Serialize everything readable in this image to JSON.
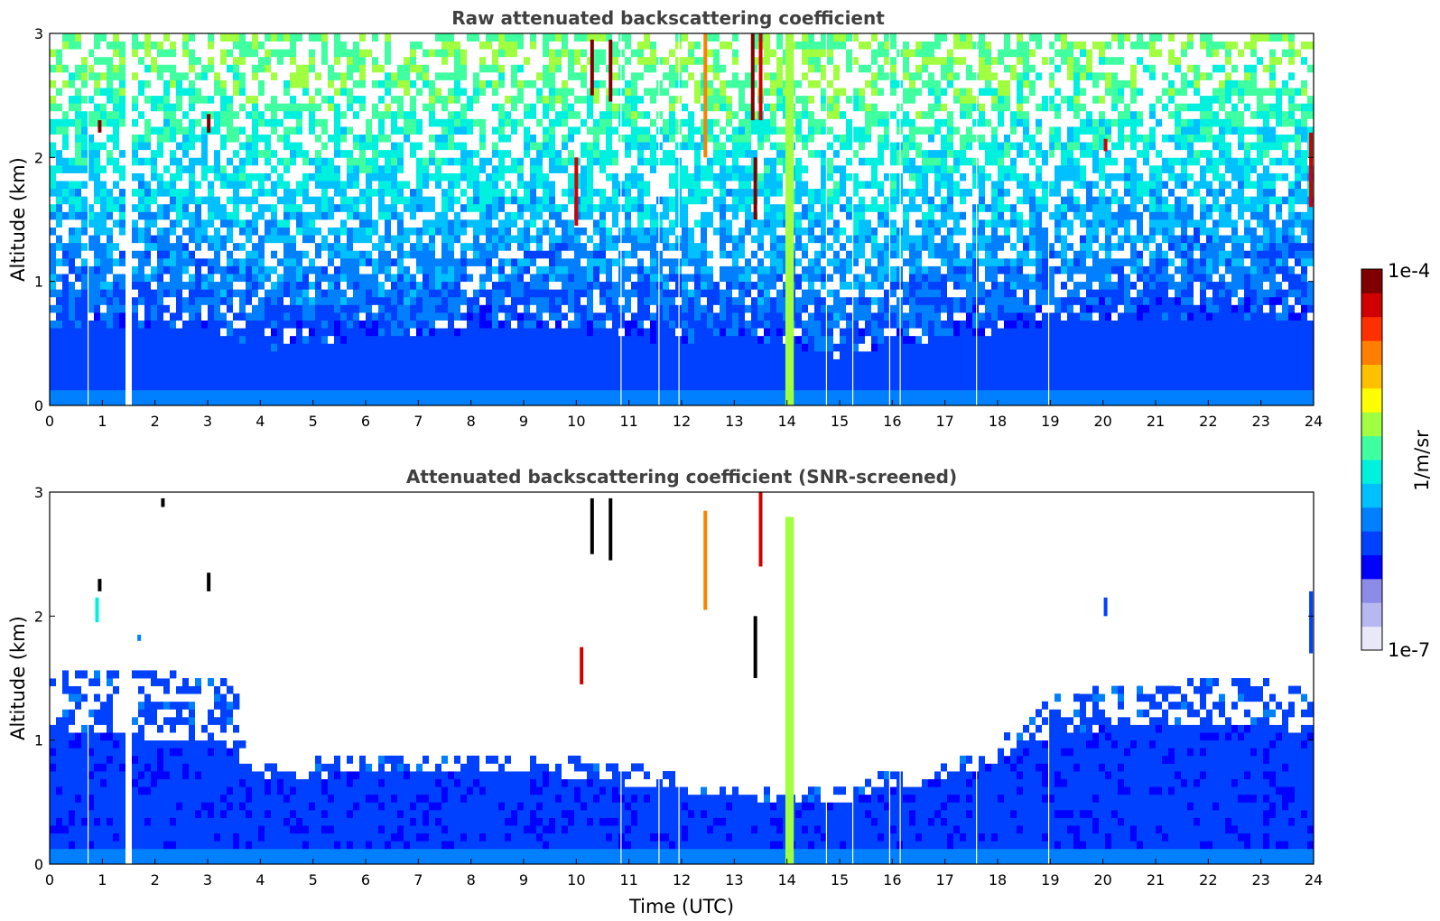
{
  "chart_data": [
    {
      "type": "heatmap",
      "title": "Raw attenuated backscattering coefficient",
      "xlabel": "",
      "ylabel": "Altitude (km)",
      "xlim": [
        0,
        24
      ],
      "ylim": [
        0,
        3
      ],
      "xticks": [
        "0",
        "1",
        "2",
        "3",
        "4",
        "5",
        "6",
        "7",
        "8",
        "9",
        "10",
        "11",
        "12",
        "13",
        "14",
        "15",
        "16",
        "17",
        "18",
        "19",
        "20",
        "21",
        "22",
        "23",
        "24"
      ],
      "yticks": [
        "0",
        "1",
        "2",
        "3"
      ],
      "grid": false,
      "profile": {
        "time_utc": [
          0,
          1,
          2,
          3,
          4,
          5,
          6,
          7,
          8,
          9,
          10,
          11,
          12,
          13,
          14,
          15,
          16,
          17,
          18,
          19,
          20,
          21,
          22,
          23,
          24
        ],
        "noise_onset_km": [
          0.6,
          0.6,
          0.65,
          0.6,
          0.45,
          0.5,
          0.55,
          0.55,
          0.6,
          0.6,
          0.6,
          0.55,
          0.5,
          0.55,
          0.5,
          0.4,
          0.5,
          0.55,
          0.6,
          0.65,
          0.7,
          0.7,
          0.7,
          0.7,
          0.7
        ]
      },
      "gaps_utc": [
        0.73,
        1.5,
        10.85,
        11.57,
        11.95,
        14.75,
        15.25,
        15.95,
        16.15,
        17.6,
        18.97
      ],
      "features": [
        {
          "type": "cloud",
          "x": 0.95,
          "y0": 2.2,
          "y1": 2.3,
          "level": 1.0
        },
        {
          "type": "cloud",
          "x": 3.02,
          "y0": 2.2,
          "y1": 2.35,
          "level": 1.0
        },
        {
          "type": "cloud",
          "x": 10.3,
          "y0": 2.5,
          "y1": 2.95,
          "level": 0.95
        },
        {
          "type": "cloud",
          "x": 10.65,
          "y0": 2.45,
          "y1": 2.95,
          "level": 0.95
        },
        {
          "type": "cloud",
          "x": 10.0,
          "y0": 1.45,
          "y1": 2.0,
          "level": 0.9
        },
        {
          "type": "cloud",
          "x": 12.45,
          "y0": 2.0,
          "y1": 3.0,
          "level": 0.8
        },
        {
          "type": "cloud",
          "x": 13.35,
          "y0": 2.3,
          "y1": 3.0,
          "level": 0.95
        },
        {
          "type": "cloud",
          "x": 13.4,
          "y0": 1.5,
          "y1": 2.0,
          "level": 0.95
        },
        {
          "type": "cloud",
          "x": 13.5,
          "y0": 2.3,
          "y1": 3.0,
          "level": 0.9
        },
        {
          "type": "cloud",
          "x": 20.05,
          "y0": 2.05,
          "y1": 2.15,
          "level": 0.9
        },
        {
          "type": "cloud",
          "x": 23.95,
          "y0": 1.6,
          "y1": 2.2,
          "level": 0.9
        },
        {
          "type": "column",
          "x": 14.05,
          "width": 0.16,
          "y0": 0,
          "y1": 3.0,
          "level": 0.6
        }
      ]
    },
    {
      "type": "heatmap",
      "title": "Attenuated backscattering coefficient (SNR-screened)",
      "xlabel": "Time (UTC)",
      "ylabel": "Altitude (km)",
      "xlim": [
        0,
        24
      ],
      "ylim": [
        0,
        3
      ],
      "xticks": [
        "0",
        "1",
        "2",
        "3",
        "4",
        "5",
        "6",
        "7",
        "8",
        "9",
        "10",
        "11",
        "12",
        "13",
        "14",
        "15",
        "16",
        "17",
        "18",
        "19",
        "20",
        "21",
        "22",
        "23",
        "24"
      ],
      "yticks": [
        "0",
        "1",
        "2",
        "3"
      ],
      "grid": false,
      "profile": {
        "time_utc": [
          0,
          1,
          2,
          3,
          3.5,
          3.8,
          4,
          5,
          6,
          7,
          8,
          9,
          10,
          10.5,
          11,
          12,
          12.5,
          13,
          13.5,
          14,
          14.5,
          15,
          15.5,
          16,
          16.5,
          17,
          17.5,
          18,
          18.5,
          19,
          20,
          21,
          22,
          23,
          24
        ],
        "top_km": [
          1.55,
          1.55,
          1.55,
          1.5,
          1.45,
          0.85,
          0.8,
          0.85,
          0.85,
          0.85,
          0.85,
          0.85,
          0.85,
          0.8,
          0.8,
          0.75,
          0.65,
          0.65,
          0.6,
          0.65,
          0.6,
          0.6,
          0.65,
          0.8,
          0.75,
          0.8,
          0.9,
          1.0,
          1.15,
          1.35,
          1.45,
          1.45,
          1.5,
          1.5,
          1.4
        ],
        "solid_km": [
          1.05,
          1.05,
          1.0,
          1.0,
          0.95,
          0.7,
          0.7,
          0.7,
          0.75,
          0.75,
          0.75,
          0.75,
          0.7,
          0.7,
          0.65,
          0.6,
          0.55,
          0.55,
          0.5,
          0.55,
          0.5,
          0.5,
          0.55,
          0.65,
          0.65,
          0.7,
          0.75,
          0.85,
          0.95,
          1.05,
          1.1,
          1.1,
          1.1,
          1.1,
          1.05
        ]
      },
      "gaps_utc": [
        0.73,
        1.5,
        10.85,
        11.57,
        11.95,
        14.75,
        15.25,
        15.95,
        16.15,
        17.6,
        18.97
      ],
      "features": [
        {
          "type": "cloud",
          "x": 0.95,
          "y0": 2.2,
          "y1": 2.3,
          "level": 0.02
        },
        {
          "type": "cloud",
          "x": 0.9,
          "y0": 1.95,
          "y1": 2.15,
          "level": 0.45
        },
        {
          "type": "cloud",
          "x": 1.7,
          "y0": 1.8,
          "y1": 1.85,
          "level": 0.35
        },
        {
          "type": "cloud",
          "x": 3.02,
          "y0": 2.2,
          "y1": 2.35,
          "level": 0.02
        },
        {
          "type": "cloud",
          "x": 2.15,
          "y0": 2.88,
          "y1": 2.95,
          "level": 0.02
        },
        {
          "type": "cloud",
          "x": 10.3,
          "y0": 2.5,
          "y1": 2.95,
          "level": 0.02
        },
        {
          "type": "cloud",
          "x": 10.65,
          "y0": 2.45,
          "y1": 2.95,
          "level": 0.02
        },
        {
          "type": "cloud",
          "x": 10.1,
          "y0": 1.45,
          "y1": 1.75,
          "level": 0.9
        },
        {
          "type": "cloud",
          "x": 12.45,
          "y0": 2.05,
          "y1": 2.85,
          "level": 0.75
        },
        {
          "type": "cloud",
          "x": 13.4,
          "y0": 1.5,
          "y1": 2.0,
          "level": 0.02
        },
        {
          "type": "cloud",
          "x": 13.5,
          "y0": 2.4,
          "y1": 3.0,
          "level": 0.9
        },
        {
          "type": "cloud",
          "x": 20.05,
          "y0": 2.0,
          "y1": 2.15,
          "level": 0.25
        },
        {
          "type": "cloud",
          "x": 23.95,
          "y0": 1.7,
          "y1": 2.2,
          "level": 0.25
        },
        {
          "type": "column",
          "x": 14.05,
          "width": 0.16,
          "y0": 0,
          "y1": 2.8,
          "level": 0.6
        }
      ]
    }
  ],
  "colorbar": {
    "label": "1/m/sr",
    "max_label": "1e-4",
    "min_label": "1e-7",
    "colors": [
      "#e8e8f8",
      "#b8b8f0",
      "#8c8ce8",
      "#0000ff",
      "#0040ff",
      "#0080ff",
      "#00c0ff",
      "#00f0e0",
      "#40ffa0",
      "#a0ff40",
      "#ffff00",
      "#ffc000",
      "#ff8000",
      "#ff3000",
      "#d00000",
      "#800000"
    ]
  }
}
